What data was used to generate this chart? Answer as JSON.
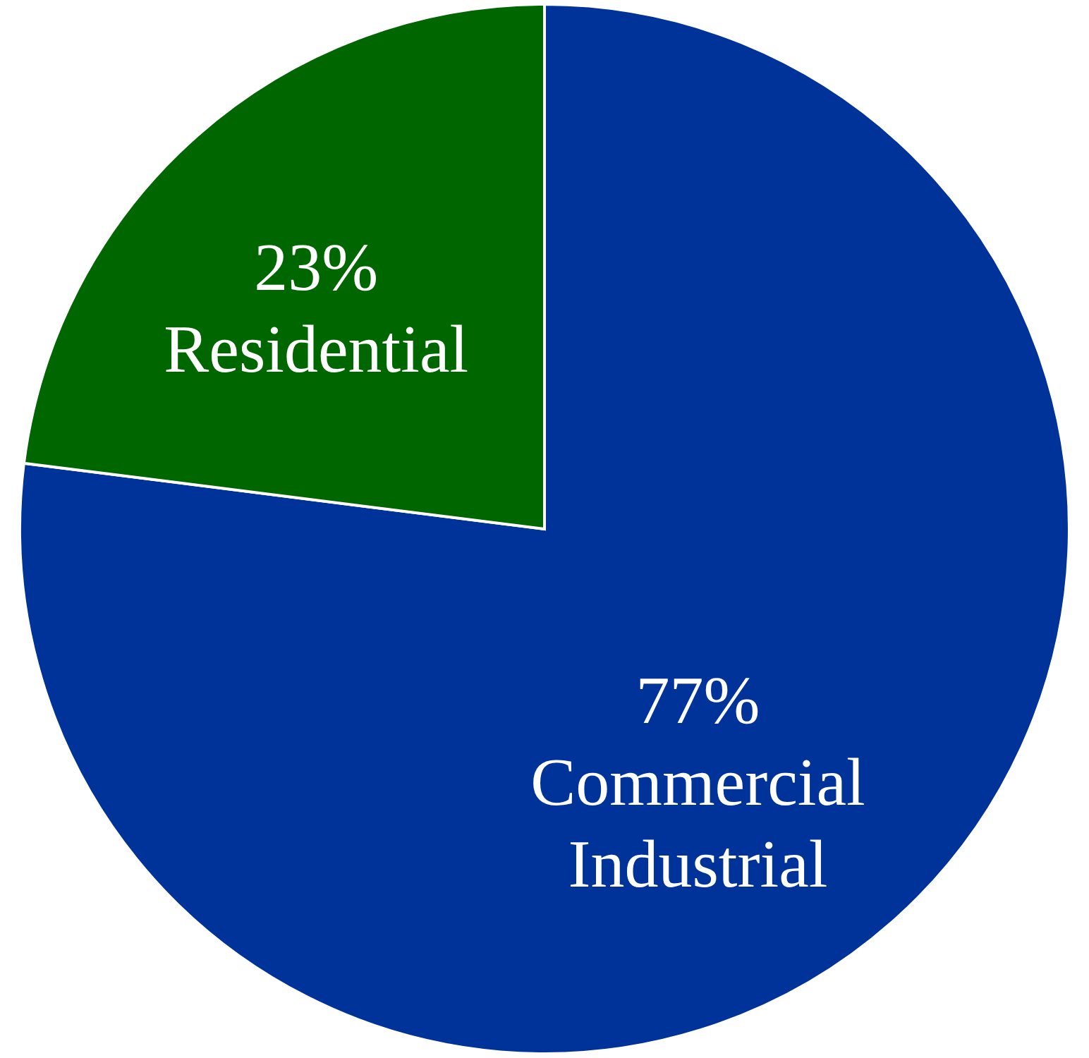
{
  "chart_data": {
    "type": "pie",
    "categories": [
      "Commercial Industrial",
      "Residential"
    ],
    "values": [
      77,
      23
    ],
    "colors": [
      "#003399",
      "#006600"
    ],
    "value_labels": [
      "77%",
      "23%"
    ],
    "legend": false
  }
}
